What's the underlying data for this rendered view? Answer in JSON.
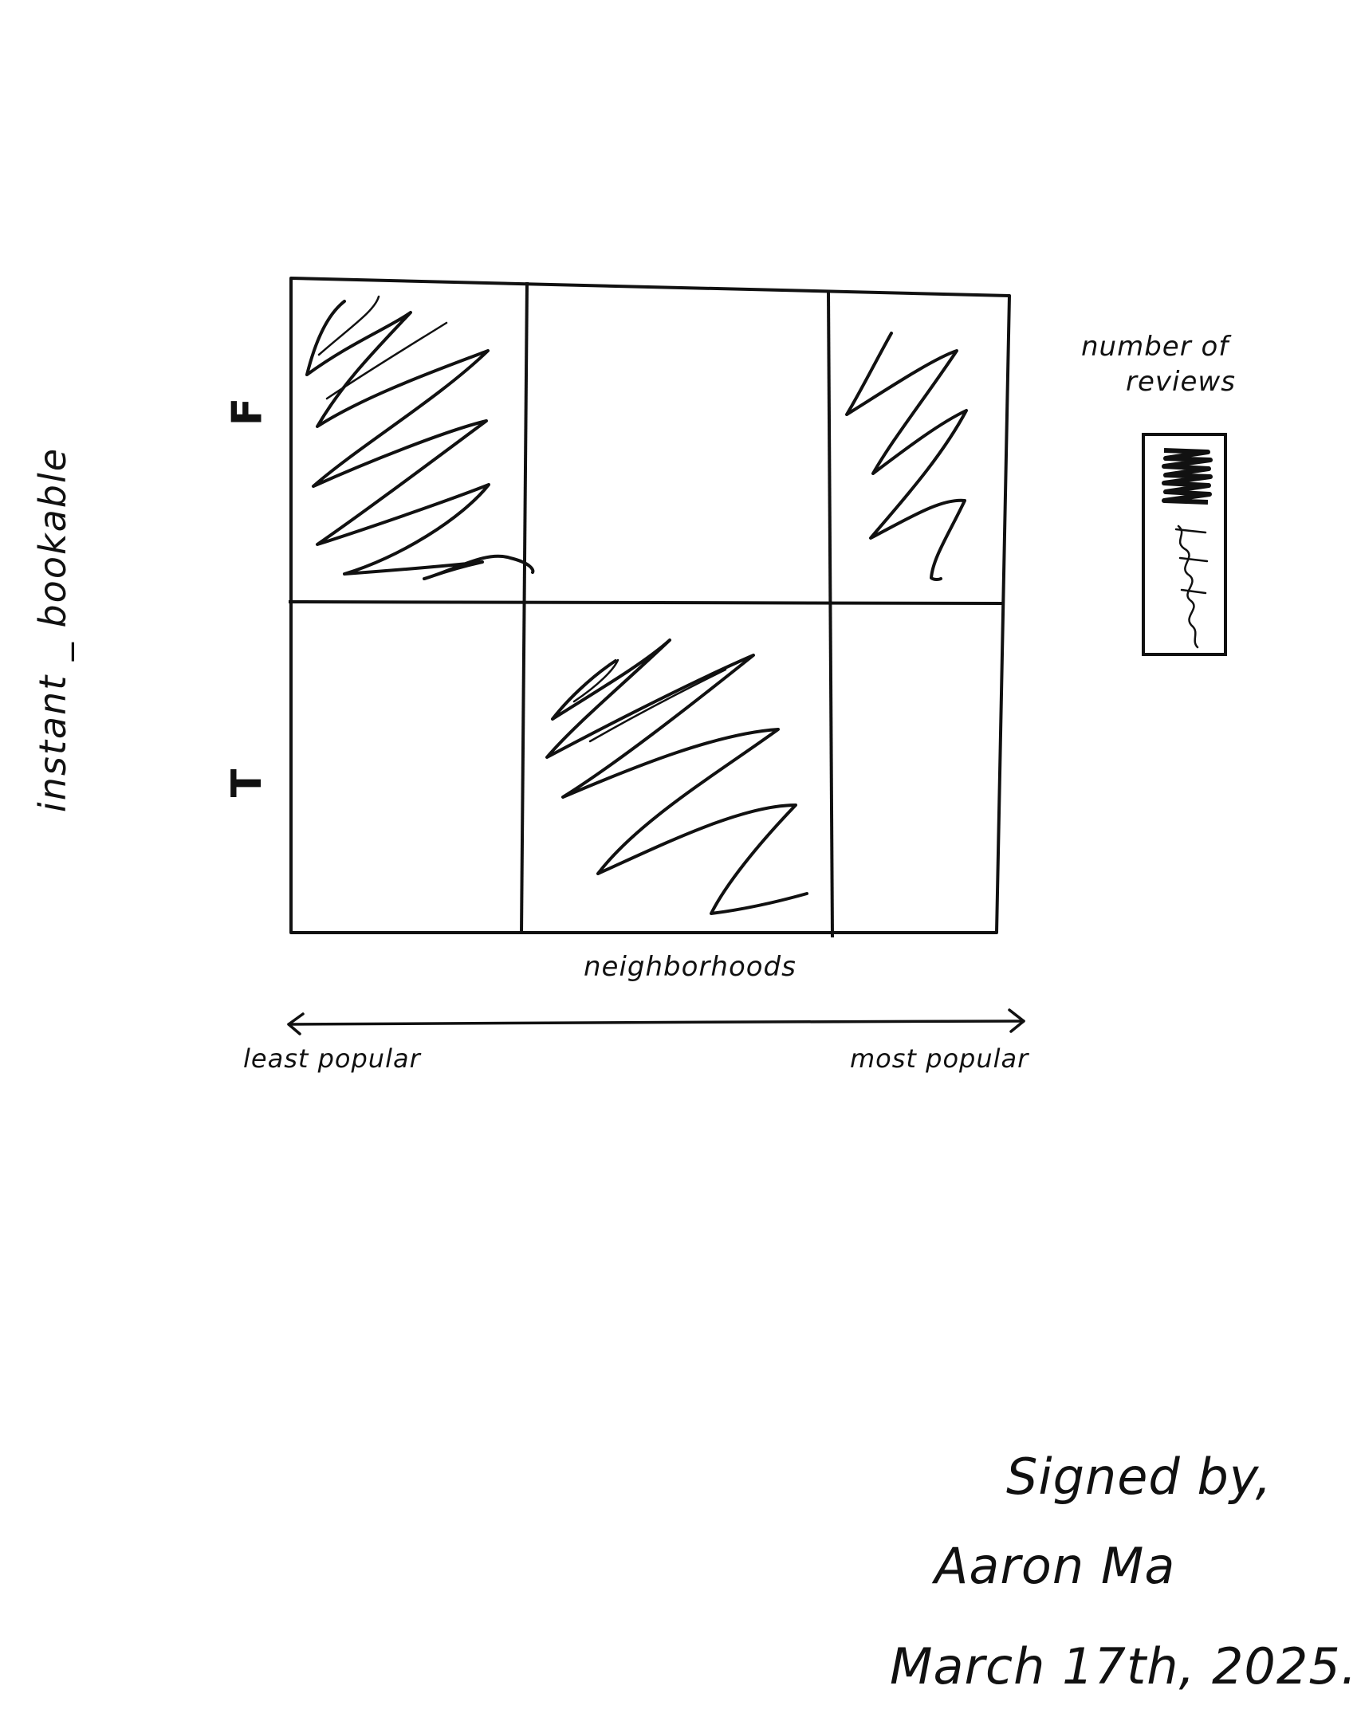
{
  "diagram": {
    "y_axis_label": "instant _ bookable",
    "rows": [
      {
        "label": "F"
      },
      {
        "label": "T"
      }
    ],
    "columns": 3,
    "x_axis_label": "neighborhoods",
    "x_axis_left_label": "least popular",
    "x_axis_right_label": "most popular",
    "legend": {
      "title_line1": "number of",
      "title_line2": "reviews"
    },
    "filled_cells": [
      {
        "row": "F",
        "column": 1,
        "density": "dense"
      },
      {
        "row": "F",
        "column": 3,
        "density": "sparse"
      },
      {
        "row": "T",
        "column": 2,
        "density": "dense"
      }
    ],
    "colors": {
      "stroke": "#111111",
      "background": "#ffffff"
    }
  },
  "signature": {
    "line1": "Signed by,",
    "line2": "Aaron Ma",
    "line3": "March 17th, 2025."
  }
}
